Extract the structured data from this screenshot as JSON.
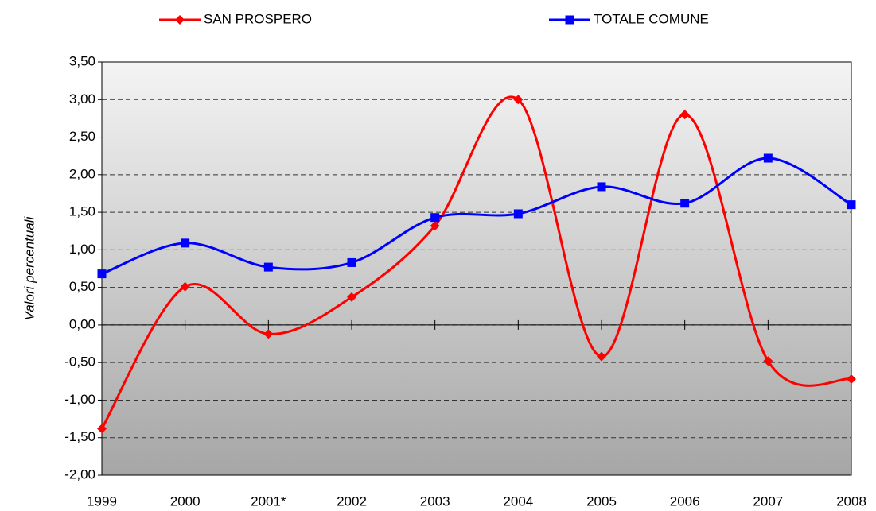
{
  "chart_data": {
    "type": "line",
    "y_label": "Valori percentuali",
    "categories": [
      "1999",
      "2000",
      "2001*",
      "2002",
      "2003",
      "2004",
      "2005",
      "2006",
      "2007",
      "2008"
    ],
    "series": [
      {
        "name": "SAN PROSPERO",
        "color": "#ff0000",
        "marker": "diamond",
        "values": [
          -1.38,
          0.51,
          -0.12,
          0.37,
          1.32,
          3.0,
          -0.42,
          2.8,
          -0.48,
          -0.72
        ]
      },
      {
        "name": "TOTALE COMUNE",
        "color": "#0000ff",
        "marker": "square",
        "values": [
          0.68,
          1.09,
          0.77,
          0.83,
          1.43,
          1.48,
          1.84,
          1.62,
          2.22,
          1.6
        ]
      }
    ],
    "ylim": [
      -2,
      3.5
    ],
    "yticks": [
      {
        "value": -2,
        "label": "-2,00"
      },
      {
        "value": -1.5,
        "label": "-1,50"
      },
      {
        "value": -1,
        "label": "-1,00"
      },
      {
        "value": -0.5,
        "label": "-0,50"
      },
      {
        "value": 0,
        "label": "0,00"
      },
      {
        "value": 0.5,
        "label": "0,50"
      },
      {
        "value": 1,
        "label": "1,00"
      },
      {
        "value": 1.5,
        "label": "1,50"
      },
      {
        "value": 2,
        "label": "2,00"
      },
      {
        "value": 2.5,
        "label": "2,50"
      },
      {
        "value": 3,
        "label": "3,00"
      },
      {
        "value": 3.5,
        "label": "3,50"
      }
    ],
    "grid": true,
    "smooth": true,
    "legend": "top"
  }
}
